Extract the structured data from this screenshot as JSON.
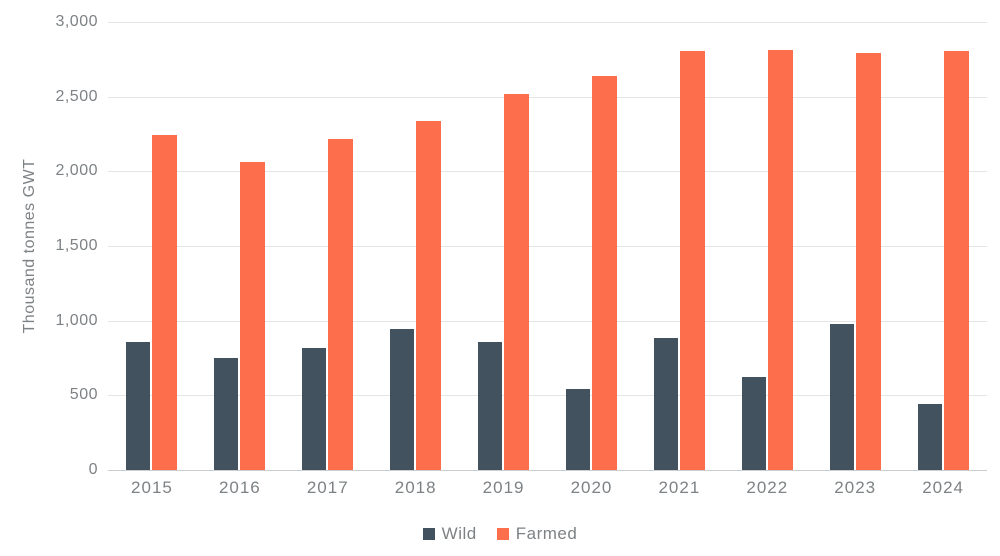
{
  "chart_data": {
    "type": "bar",
    "title": "",
    "categories": [
      "2015",
      "2016",
      "2017",
      "2018",
      "2019",
      "2020",
      "2021",
      "2022",
      "2023",
      "2024"
    ],
    "series": [
      {
        "name": "Wild",
        "color": "#42525E",
        "values": [
          855,
          750,
          815,
          945,
          855,
          540,
          885,
          625,
          975,
          440
        ]
      },
      {
        "name": "Farmed",
        "color": "#FC6E4C",
        "values": [
          2245,
          2065,
          2220,
          2335,
          2520,
          2640,
          2805,
          2810,
          2790,
          2805
        ]
      }
    ],
    "xlabel": "",
    "ylabel": "Thousand tonnes GWT",
    "ylim": [
      0,
      3000
    ],
    "ytick_step": 500,
    "ytick_labels": [
      "0",
      "500",
      "1,000",
      "1,500",
      "2,000",
      "2,500",
      "3,000"
    ],
    "grid": true,
    "legend_position": "bottom"
  },
  "legend": {
    "items": [
      {
        "label": "Wild",
        "color": "#42525E"
      },
      {
        "label": "Farmed",
        "color": "#FC6E4C"
      }
    ]
  },
  "colors": {
    "wild": "#42525E",
    "farmed": "#FC6E4C",
    "axis_text": "#7D8285",
    "gridline": "#E3E5E6",
    "zero_line": "#C9CDD0"
  }
}
